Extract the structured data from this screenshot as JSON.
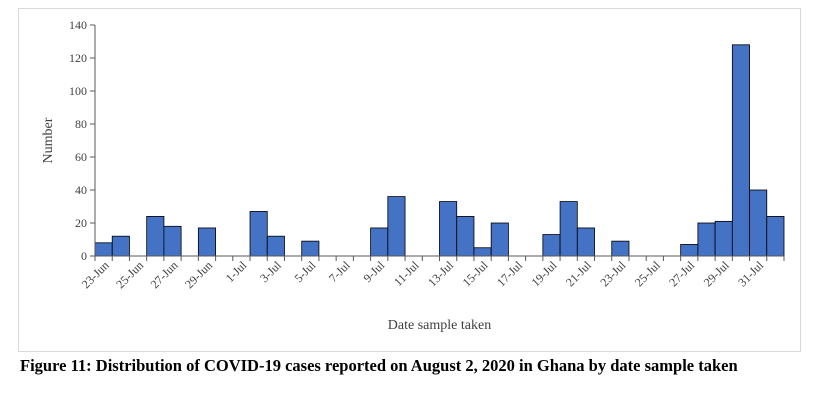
{
  "chart_data": {
    "type": "bar",
    "title": "",
    "xlabel": "Date sample taken",
    "ylabel": "Number",
    "ylim": [
      0,
      140
    ],
    "yticks": [
      0,
      20,
      40,
      60,
      80,
      100,
      120,
      140
    ],
    "x_tick_labels": [
      "23-Jun",
      "25-Jun",
      "27-Jun",
      "29-Jun",
      "1-Jul",
      "3-Jul",
      "5-Jul",
      "7-Jul",
      "9-Jul",
      "11-Jul",
      "13-Jul",
      "15-Jul",
      "17-Jul",
      "19-Jul",
      "21-Jul",
      "23-Jul",
      "25-Jul",
      "27-Jul",
      "29-Jul",
      "31-Jul"
    ],
    "categories": [
      "23-Jun",
      "24-Jun",
      "25-Jun",
      "26-Jun",
      "27-Jun",
      "28-Jun",
      "29-Jun",
      "30-Jun",
      "1-Jul",
      "2-Jul",
      "3-Jul",
      "4-Jul",
      "5-Jul",
      "6-Jul",
      "7-Jul",
      "8-Jul",
      "9-Jul",
      "10-Jul",
      "11-Jul",
      "12-Jul",
      "13-Jul",
      "14-Jul",
      "15-Jul",
      "16-Jul",
      "17-Jul",
      "18-Jul",
      "19-Jul",
      "20-Jul",
      "21-Jul",
      "22-Jul",
      "23-Jul",
      "24-Jul",
      "25-Jul",
      "26-Jul",
      "27-Jul",
      "28-Jul",
      "29-Jul",
      "30-Jul",
      "31-Jul",
      "1-Aug"
    ],
    "values": [
      8,
      12,
      0,
      24,
      18,
      0,
      17,
      0,
      0,
      27,
      12,
      0,
      9,
      0,
      0,
      0,
      17,
      36,
      0,
      0,
      33,
      24,
      5,
      20,
      0,
      0,
      13,
      33,
      17,
      0,
      9,
      0,
      0,
      0,
      7,
      20,
      21,
      128,
      40,
      24
    ],
    "bar_color": "#4472c4",
    "bar_edge_color": "#000000",
    "grid": false,
    "legend": "none"
  },
  "caption": "Figure 11: Distribution of COVID-19 cases reported on August 2, 2020 in Ghana by date sample taken"
}
